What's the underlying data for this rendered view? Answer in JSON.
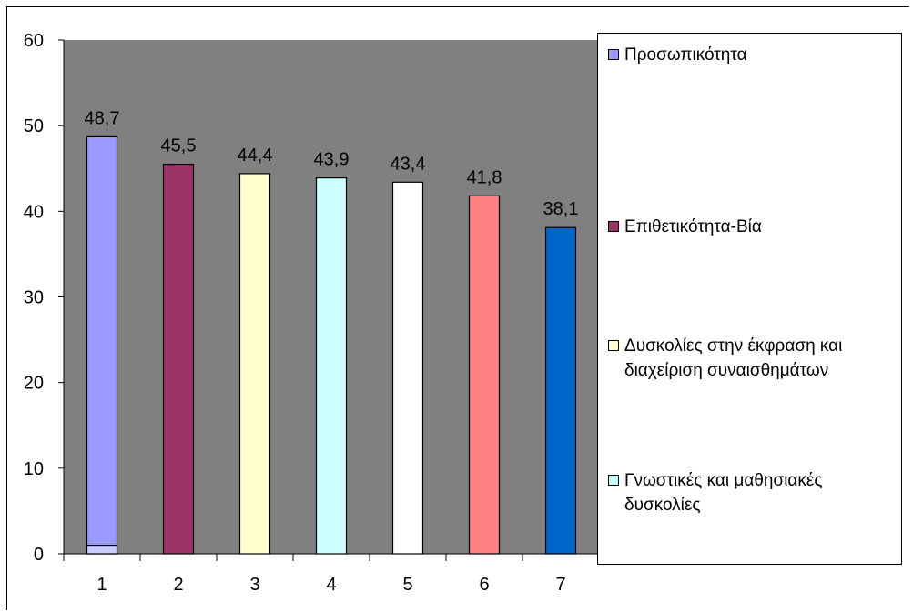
{
  "chart_data": {
    "type": "bar",
    "title": "",
    "xlabel": "",
    "ylabel": "",
    "categories": [
      "1",
      "2",
      "3",
      "4",
      "5",
      "6",
      "7"
    ],
    "values": [
      48.7,
      45.5,
      44.4,
      43.9,
      43.4,
      41.8,
      38.1
    ],
    "value_labels": [
      "48,7",
      "45,5",
      "44,4",
      "43,9",
      "43,4",
      "41,8",
      "38,1"
    ],
    "colors": [
      "#9999ff",
      "#993366",
      "#ffffcc",
      "#ccffff",
      "#ffffff",
      "#ff8080",
      "#0066cc"
    ],
    "ylim": [
      0,
      60
    ],
    "yticks": [
      0,
      10,
      20,
      30,
      40,
      50,
      60
    ],
    "plot_background": "#808080",
    "grid": false,
    "legend_position": "right",
    "extra_marks": [
      {
        "category": "1",
        "value": 1,
        "color": "#ccccff"
      }
    ]
  },
  "legend": {
    "items": [
      {
        "label": "Προσωπικότητα",
        "color": "#9999ff"
      },
      {
        "label": "Επιθετικότητα-Βία",
        "color": "#993366"
      },
      {
        "label": "Δυσκολίες στην έκφραση και διαχείριση συναισθημάτων",
        "color": "#ffffcc"
      },
      {
        "label": "Γνωστικές και μαθησιακές δυσκολίες",
        "color": "#ccffff"
      }
    ]
  }
}
